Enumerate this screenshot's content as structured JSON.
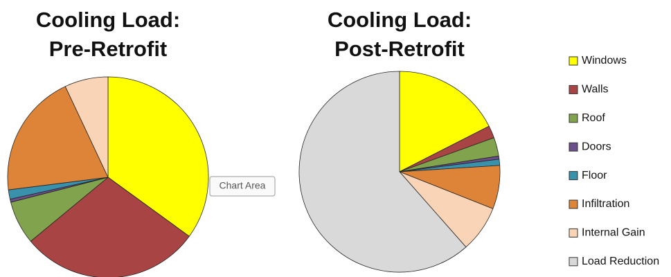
{
  "categories": [
    "Windows",
    "Walls",
    "Roof",
    "Doors",
    "Floor",
    "Infiltration",
    "Internal Gain",
    "Load Reduction"
  ],
  "colors": [
    "#ffff00",
    "#a84444",
    "#82a34e",
    "#6b4f8a",
    "#3a91ab",
    "#dd8439",
    "#fad4b6",
    "#d9d9d9"
  ],
  "tooltip": "Chart Area",
  "chart_data": [
    {
      "type": "pie",
      "title": "Cooling Load: Pre-Retrofit",
      "values": [
        35,
        29,
        7,
        0.5,
        1.5,
        20,
        7,
        0
      ]
    },
    {
      "type": "pie",
      "title": "Cooling Load: Post-Retrofit",
      "values": [
        17.5,
        2,
        3,
        0.5,
        1,
        7,
        7.5,
        61.5
      ]
    }
  ]
}
